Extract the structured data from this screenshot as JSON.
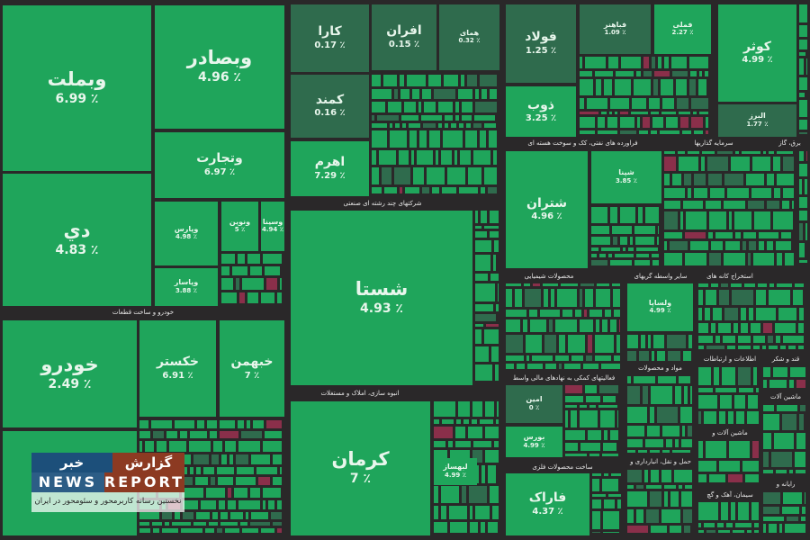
{
  "colors": {
    "background": "#2a2829",
    "positive": "#1fa55b",
    "flat": "#2f6b4d",
    "negative": "#8a2f4a"
  },
  "sectors": {
    "auto": "خودرو و ساخت قطعات",
    "multi": "شرکتهای چند رشته ای صنعتی",
    "realestate": "انبوه سازی، املاک و مستغلات",
    "petroleum": "فراورده های نفتی، کک و سوخت هسته ای",
    "investment": "سرمایه گذاریها",
    "chemical": "محصولات شیمیایی",
    "intermediation": "سایر واسطه گریهای",
    "mining": "استخراج کانه های",
    "ict": "اطلاعات و ارتباطات",
    "sugar": "قند و شکر",
    "materials": "مواد و محصولات",
    "financial": "فعالیتهای کمکی به نهادهای مالی واسط",
    "metal": "ساخت محصولات فلزی",
    "machinery": "ماشین آلات و",
    "machinery2": "ماشین آلات",
    "transport": "حمل و نقل، انبارداری و",
    "cement": "سیمان، آهک و گچ",
    "computer": "رایانه و",
    "utility": "برق، گاز"
  },
  "tiles": [
    {
      "name": "وبملت",
      "pct": "6.99 ٪"
    },
    {
      "name": "وبصادر",
      "pct": "4.96 ٪"
    },
    {
      "name": "وتجارت",
      "pct": "6.97 ٪"
    },
    {
      "name": "دي",
      "pct": "4.83 ٪"
    },
    {
      "name": "وپارس",
      "pct": "4.98 ٪"
    },
    {
      "name": "وپاسار",
      "pct": "3.88 ٪"
    },
    {
      "name": "ونوين",
      "pct": "5 ٪"
    },
    {
      "name": "وسینا",
      "pct": "4.94 ٪"
    },
    {
      "name": "خودرو",
      "pct": "2.49 ٪"
    },
    {
      "name": "خکستر",
      "pct": "6.91 ٪"
    },
    {
      "name": "خبهمن",
      "pct": "7 ٪"
    },
    {
      "name": "کارا",
      "pct": "0.17 ٪"
    },
    {
      "name": "افران",
      "pct": "0.15 ٪"
    },
    {
      "name": "همای",
      "pct": "0.32 ٪"
    },
    {
      "name": "کمند",
      "pct": "0.16 ٪"
    },
    {
      "name": "اهرم",
      "pct": "7.29 ٪"
    },
    {
      "name": "شستا",
      "pct": "4.93 ٪"
    },
    {
      "name": "کرمان",
      "pct": "7 ٪"
    },
    {
      "name": "فولاد",
      "pct": "1.25 ٪"
    },
    {
      "name": "فباهنر",
      "pct": "1.09 ٪"
    },
    {
      "name": "فملی",
      "pct": "2.27 ٪"
    },
    {
      "name": "ذوب",
      "pct": "3.25 ٪"
    },
    {
      "name": "کوثر",
      "pct": "4.99 ٪"
    },
    {
      "name": "البرز",
      "pct": "1.77 ٪"
    },
    {
      "name": "شتران",
      "pct": "4.96 ٪"
    },
    {
      "name": "شپنا",
      "pct": "3.85 ٪"
    },
    {
      "name": "ولساپا",
      "pct": "4.99 ٪"
    },
    {
      "name": "امین",
      "pct": "0 ٪"
    },
    {
      "name": "بورس",
      "pct": "4.99 ٪"
    },
    {
      "name": "فاراک",
      "pct": "4.37 ٪"
    },
    {
      "name": "لبهساز",
      "pct": "4.99 ٪"
    },
    {
      "name": "وپاسار",
      "pct": "3.88 ٪"
    }
  ],
  "watermark": {
    "brand_fa": "گزارش خبر",
    "brand_en_1": "NEWS",
    "brand_en_2": "REPORT",
    "tagline": "نخستین رسانه کاربرمحور و سئومحور در ایران"
  }
}
